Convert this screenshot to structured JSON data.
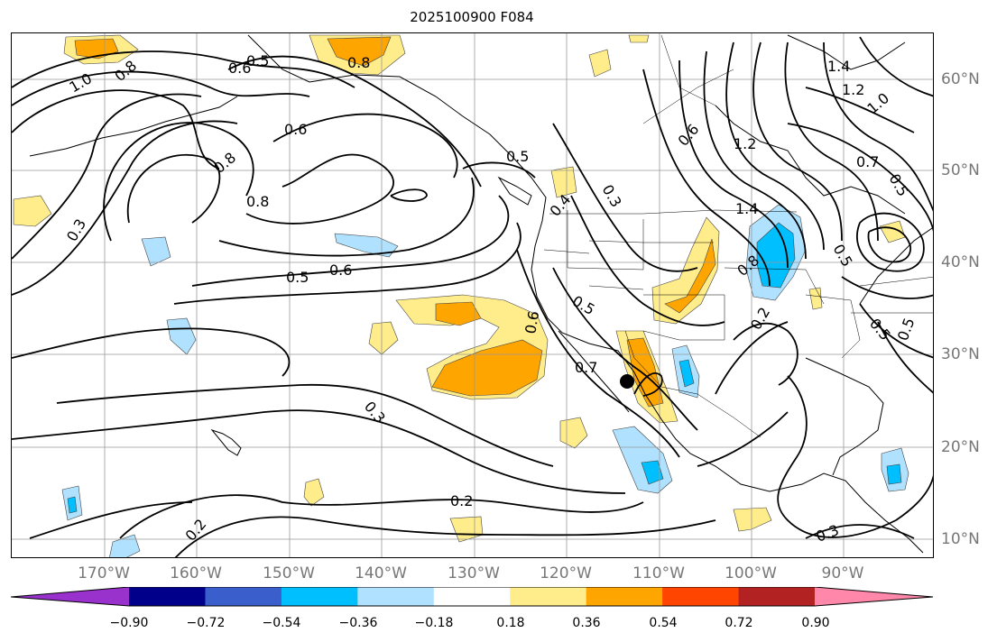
{
  "title": "2025100900 F084",
  "lon_labels": [
    "170°W",
    "160°W",
    "150°W",
    "140°W",
    "130°W",
    "120°W",
    "110°W",
    "100°W",
    "90°W"
  ],
  "lat_labels": [
    "60°N",
    "50°N",
    "40°N",
    "30°N",
    "20°N",
    "10°N"
  ],
  "contour_labels": {
    "c06a": "0.6",
    "c05a": "0.5",
    "c08a": "0.8",
    "c10a": "1.0",
    "c08b": "0.8",
    "c06b": "0.6",
    "c08c": "0.8",
    "c08d": "0.8",
    "c03a": "0.3",
    "c05b": "0.5",
    "c06c": "0.6",
    "c08e": "0.8",
    "c05c": "0.5",
    "c04a": "0.4",
    "c03b": "0.3",
    "c06d": "0.6",
    "c05d": "0.5",
    "c07a": "0.7",
    "c03c": "0.3",
    "c02a": "0.2",
    "c02b": "0.2",
    "c06e": "0.6",
    "c12a": "1.2",
    "c14a": "1.4",
    "c12b": "1.2",
    "c14b": "1.4",
    "c10b": "1.0",
    "c07b": "0.7",
    "c05e": "0.5",
    "c08f": "0.8",
    "c05f": "0.5",
    "c02c": "0.2",
    "c05g": "0.5",
    "c05h": "0.5",
    "c03d": "0.3"
  },
  "colorbar": {
    "colors": [
      "#9932cc",
      "#00008b",
      "#3a5fcd",
      "#00bfff",
      "#b0e2ff",
      "#ffffff",
      "#ffec8b",
      "#ffa500",
      "#ff4500",
      "#b22222",
      "#ff88aa"
    ],
    "ticks": [
      "−0.90",
      "−0.72",
      "−0.54",
      "−0.36",
      "−0.18",
      "0.18",
      "0.36",
      "0.54",
      "0.72",
      "0.90"
    ]
  },
  "marker": {
    "label": "point",
    "color": "#000000"
  }
}
